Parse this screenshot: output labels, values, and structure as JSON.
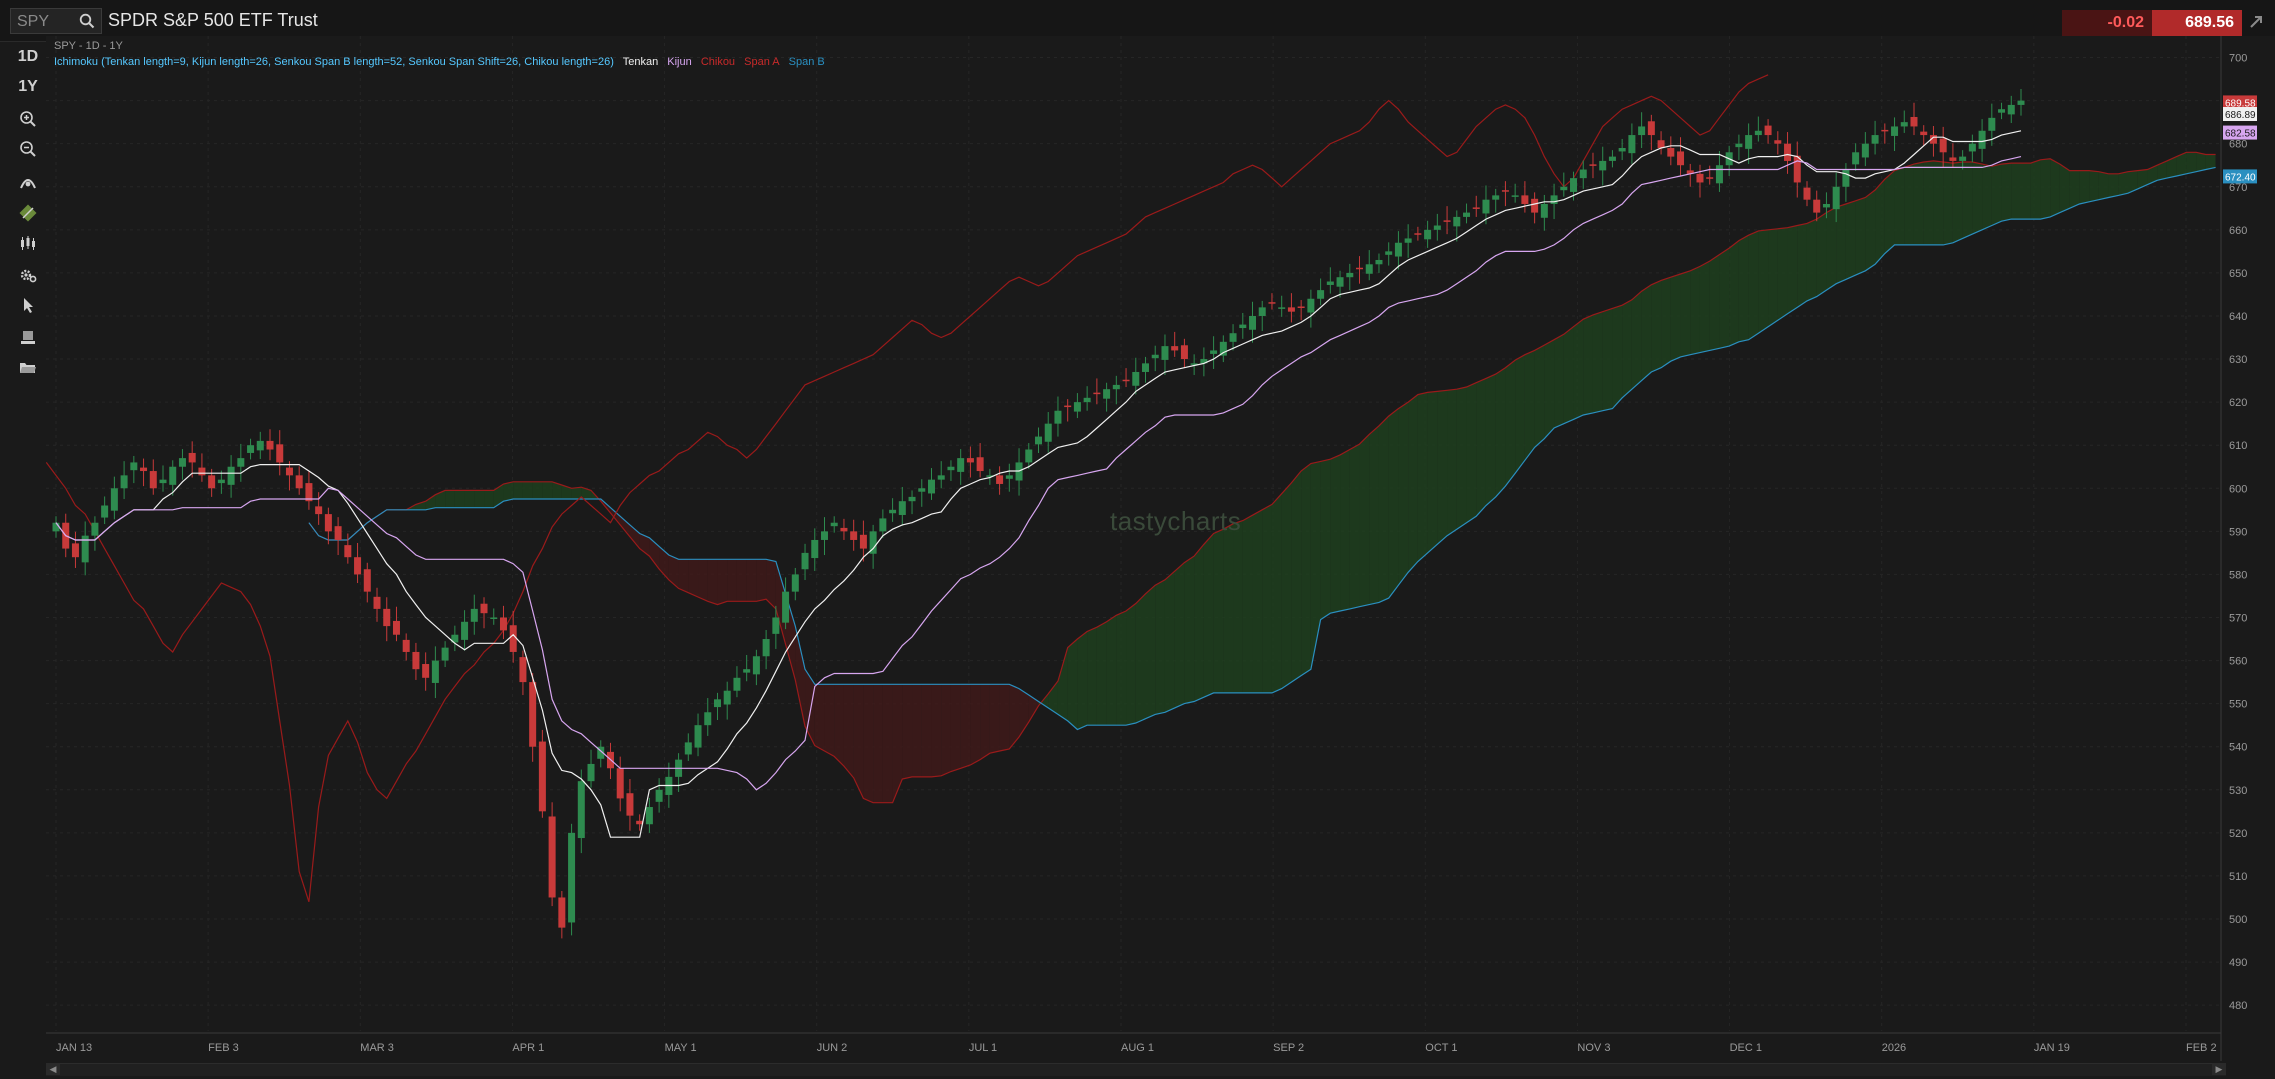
{
  "header": {
    "symbol": "SPY",
    "name": "SPDR S&P 500 ETF Trust",
    "net_change": "-0.02",
    "last_price": "689.56"
  },
  "toolbar": {
    "interval_1d": "1D",
    "range_1y": "1Y",
    "icons": [
      "zoom-in-icon",
      "zoom-out-icon",
      "studies-icon",
      "drawing-icon",
      "chart-style-icon",
      "settings-icon",
      "cursor-icon",
      "layout-icon",
      "folder-icon"
    ]
  },
  "chart": {
    "subtitle": "SPY - 1D - 1Y",
    "indicator": "Ichimoku (Tenkan length=9, Kijun length=26, Senkou Span B length=52, Senkou Span Shift=26, Chikou length=26)",
    "legend": {
      "tenkan": "Tenkan",
      "kijun": "Kijun",
      "chikou": "Chikou",
      "span_a": "Span A",
      "span_b": "Span B"
    },
    "watermark": "tastycharts"
  },
  "colors": {
    "up": "#2e8b4f",
    "down": "#c83a3a",
    "tenkan": "#f0f0f0",
    "kijun": "#d7a6f0",
    "chikou": "#9a1a1a",
    "span_a": "#9a1a1a",
    "span_b": "#2a8fc0",
    "cloud_bull": "#1f3f1f",
    "cloud_bear": "#3f1a1a",
    "grid": "#262626",
    "axis_text": "#9a9a9a"
  },
  "chart_data": {
    "type": "candlestick",
    "y_axis_ticks": [
      480,
      490,
      500,
      510,
      520,
      530,
      540,
      550,
      560,
      570,
      580,
      590,
      600,
      610,
      620,
      630,
      640,
      650,
      660,
      670,
      680,
      690,
      700
    ],
    "ylim": [
      474,
      705
    ],
    "x_axis_labels": [
      "JAN 13",
      "FEB 3",
      "MAR 3",
      "APR 1",
      "MAY 1",
      "JUN 2",
      "JUL 1",
      "AUG 1",
      "SEP 2",
      "OCT 1",
      "NOV 3",
      "DEC 1",
      "2026",
      "JAN 19",
      "FEB 2"
    ],
    "price_tags": [
      {
        "label": "689.58",
        "value": 689.58,
        "color": "#c83a3a"
      },
      {
        "label": "686.89",
        "value": 686.89,
        "color": "#f0f0f0"
      },
      {
        "label": "682.58",
        "value": 682.58,
        "color": "#d7a6f0"
      },
      {
        "label": "672.40",
        "value": 672.4,
        "color": "#2a8fc0"
      }
    ],
    "close_series": [
      592,
      586,
      584,
      589,
      592,
      596,
      600,
      603,
      606,
      604,
      600,
      602,
      605,
      607,
      606,
      603,
      600,
      602,
      605,
      607,
      610,
      611,
      609,
      606,
      603,
      600,
      597,
      594,
      590,
      588,
      584,
      580,
      576,
      572,
      568,
      566,
      562,
      558,
      556,
      560,
      563,
      566,
      569,
      572,
      571,
      570,
      567,
      562,
      555,
      540,
      525,
      505,
      498,
      520,
      532,
      536,
      540,
      535,
      528,
      524,
      522,
      526,
      530,
      533,
      537,
      541,
      545,
      548,
      551,
      553,
      556,
      558,
      561,
      565,
      570,
      576,
      580,
      585,
      588,
      590,
      592,
      590,
      588,
      586,
      590,
      593,
      595,
      597,
      598,
      600,
      602,
      603,
      605,
      607,
      606,
      604,
      603,
      601,
      603,
      606,
      609,
      612,
      615,
      618,
      619,
      620,
      621,
      622,
      623,
      624,
      625,
      627,
      629,
      631,
      633,
      632,
      630,
      629,
      630,
      632,
      634,
      636,
      638,
      640,
      642,
      643,
      642,
      641,
      642,
      644,
      646,
      648,
      649,
      650,
      651,
      652,
      653,
      655,
      657,
      658,
      659,
      660,
      661,
      662,
      663,
      664,
      665,
      667,
      668,
      669,
      668,
      666,
      664,
      666,
      668,
      670,
      672,
      674,
      675,
      676,
      677,
      679,
      682,
      684,
      682,
      679,
      677,
      675,
      673,
      671,
      672,
      675,
      678,
      680,
      682,
      683,
      682,
      680,
      676,
      671,
      667,
      664,
      666,
      670,
      674,
      678,
      680,
      682,
      683,
      684,
      685,
      684,
      682,
      680,
      678,
      676,
      677,
      680,
      683,
      686,
      688,
      689,
      690
    ]
  }
}
